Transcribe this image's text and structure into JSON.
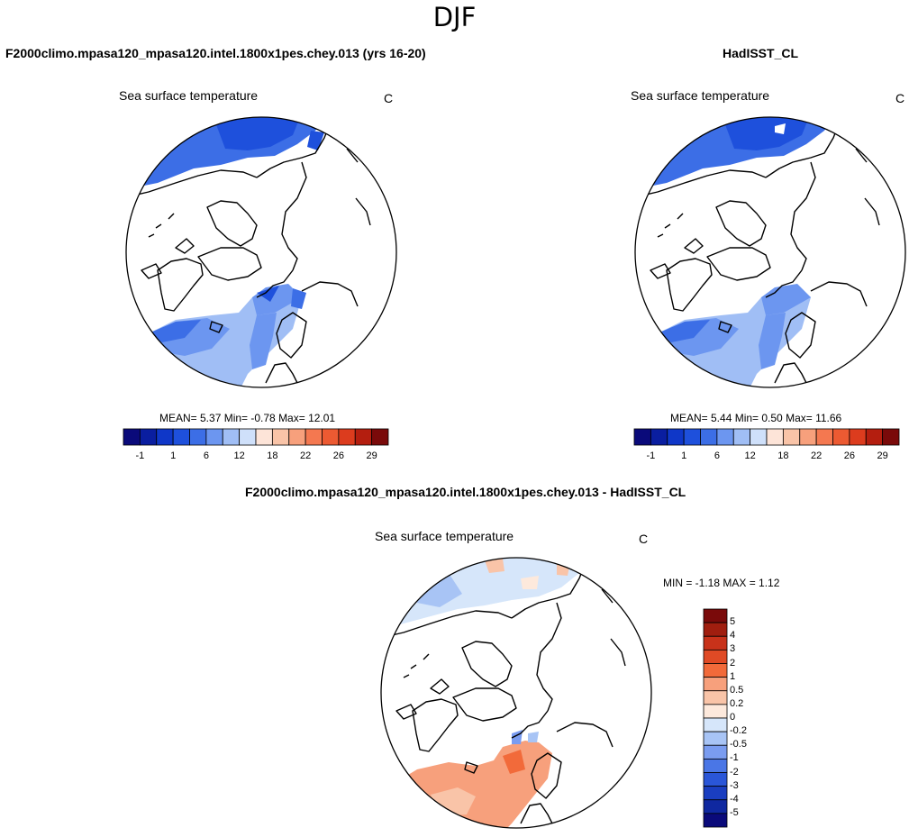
{
  "figure": {
    "title": "DJF"
  },
  "panels": [
    {
      "header": "F2000climo.mpasa120_mpasa120.intel.1800x1pes.chey.013 (yrs 16-20)",
      "variable": "Sea surface temperature",
      "units": "C",
      "stats_text": "MEAN=  5.37  Min=  -0.78  Max=  12.01"
    },
    {
      "header": "HadISST_CL",
      "variable": "Sea surface temperature",
      "units": "C",
      "stats_text": "MEAN=  5.44  Min=  0.50  Max=  11.66"
    },
    {
      "header": "F2000climo.mpasa120_mpasa120.intel.1800x1pes.chey.013 - HadISST_CL",
      "variable": "Sea surface temperature",
      "units": "C",
      "stats_text": "MIN =  -1.18 MAX =   1.12"
    }
  ],
  "colorbar_main": {
    "colors": [
      "#0a0a7a",
      "#0a1ea0",
      "#0f37c8",
      "#1e50dc",
      "#3c6ee6",
      "#6c96f0",
      "#a0bef5",
      "#cfe0fa",
      "#fde4d8",
      "#f9c4a8",
      "#f7a07c",
      "#f47850",
      "#ec5a32",
      "#dc3c1e",
      "#b41e0f",
      "#7a0a0a"
    ],
    "tick_labels": [
      "-1",
      "1",
      "6",
      "12",
      "18",
      "22",
      "26",
      "29"
    ]
  },
  "colorbar_diff": {
    "colors": [
      "#7a0a0a",
      "#a01e0f",
      "#c8321a",
      "#e04a25",
      "#f26a3a",
      "#f7a07c",
      "#f9c4a8",
      "#fde9dc",
      "#d6e6fa",
      "#a8c4f5",
      "#7a9cf0",
      "#4a76e6",
      "#2a56d8",
      "#1a3ec0",
      "#0f28a0",
      "#0a0a7a"
    ],
    "tick_labels": [
      "5",
      "4",
      "3",
      "2",
      "1",
      "0.5",
      "0.2",
      "0",
      "-0.2",
      "-0.5",
      "-1",
      "-2",
      "-3",
      "-4",
      "-5"
    ]
  }
}
